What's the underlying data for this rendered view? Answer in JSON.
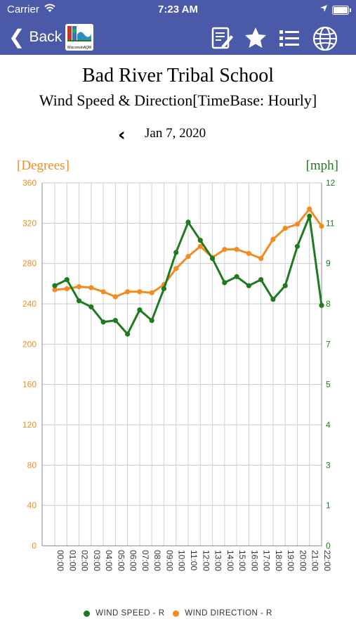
{
  "status": {
    "carrier": "Carrier",
    "time": "7:23 AM"
  },
  "nav": {
    "back_label": "Back",
    "logo_text": "WisconsinAQM"
  },
  "header": {
    "title": "Bad River Tribal School",
    "subtitle": "Wind Speed & Direction[TimeBase: Hourly]",
    "date": "Jan 7, 2020"
  },
  "colors": {
    "nav_bg": "#4a5aa8",
    "direction": "#f28c1e",
    "speed": "#1f7a1f"
  },
  "chart_data": {
    "type": "line",
    "x": [
      "00:00",
      "01:00",
      "02:00",
      "03:00",
      "04:00",
      "05:00",
      "06:00",
      "07:00",
      "08:00",
      "09:00",
      "10:00",
      "11:00",
      "12:00",
      "13:00",
      "14:00",
      "15:00",
      "16:00",
      "17:00",
      "18:00",
      "19:00",
      "20:00",
      "21:00",
      "22:00"
    ],
    "series": [
      {
        "name": "WIND SPEED - R",
        "axis": "right",
        "color": "#1f7a1f",
        "values": [
          8.6,
          8.8,
          8.1,
          7.9,
          7.4,
          7.45,
          7.0,
          7.8,
          7.45,
          8.5,
          9.7,
          10.7,
          10.1,
          9.5,
          8.7,
          8.9,
          8.6,
          8.8,
          8.15,
          8.6,
          9.9,
          10.9,
          7.95
        ]
      },
      {
        "name": "WIND DIRECTION - R",
        "axis": "left",
        "color": "#f28c1e",
        "values": [
          254,
          255,
          257,
          256,
          252,
          247,
          252,
          252,
          251,
          259,
          275,
          287,
          297,
          286,
          294,
          294,
          290,
          285,
          304,
          315,
          319,
          334,
          317
        ]
      }
    ],
    "left_axis": {
      "label": "[Degrees]",
      "range": [
        0,
        360
      ],
      "ticks": [
        "0",
        "40",
        "80",
        "120",
        "160",
        "200",
        "240",
        "280",
        "320",
        "360"
      ]
    },
    "right_axis": {
      "label": "[mph]",
      "range": [
        0,
        12
      ],
      "ticks": [
        "0",
        "1",
        "3",
        "4",
        "5",
        "7",
        "8",
        "9",
        "11",
        "12"
      ]
    },
    "grid": true,
    "legend_position": "bottom"
  }
}
